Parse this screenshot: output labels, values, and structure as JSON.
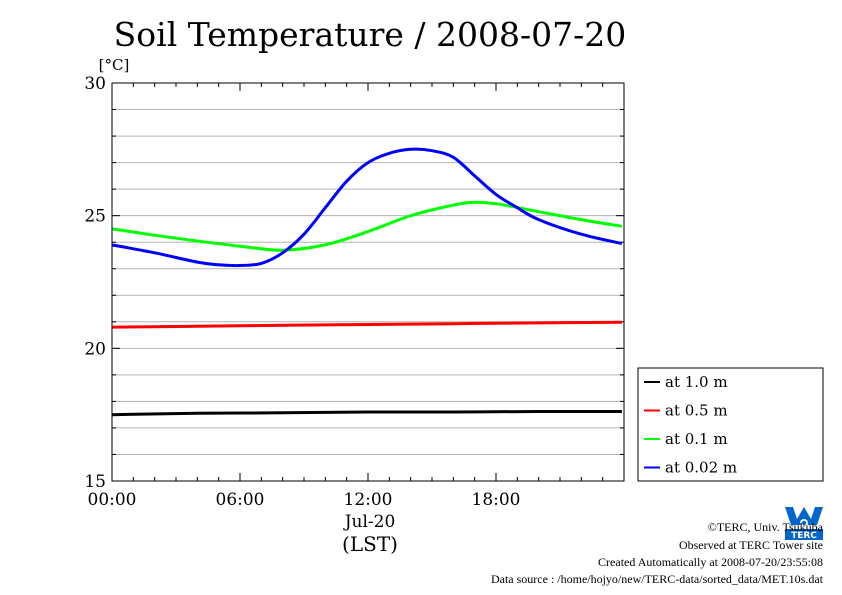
{
  "chart_data": {
    "type": "line",
    "title": "Soil Temperature / 2008-07-20",
    "ylabel": "[°C]",
    "xlabel": "(LST)",
    "date_label": "Jul-20",
    "ylim": [
      15,
      30
    ],
    "yticks": [
      "15",
      "20",
      "25",
      "30"
    ],
    "xlim_hours": [
      0,
      24
    ],
    "xticks": [
      "00:00",
      "06:00",
      "12:00",
      "18:00"
    ],
    "grid": true,
    "legend_position": "right",
    "series": [
      {
        "name": "at 1.0 m",
        "color": "#000000",
        "x": [
          0,
          4,
          8,
          12,
          16,
          20,
          23.9
        ],
        "y": [
          17.5,
          17.55,
          17.57,
          17.6,
          17.6,
          17.62,
          17.62
        ]
      },
      {
        "name": "at 0.5 m",
        "color": "#ff0000",
        "x": [
          0,
          4,
          8,
          12,
          16,
          20,
          23.9
        ],
        "y": [
          20.8,
          20.83,
          20.87,
          20.9,
          20.93,
          20.96,
          20.98
        ]
      },
      {
        "name": "at 0.1 m",
        "color": "#00ff00",
        "x": [
          0,
          3,
          6,
          8,
          10,
          12,
          14,
          16,
          17,
          18,
          20,
          22,
          23.9
        ],
        "y": [
          24.5,
          24.15,
          23.85,
          23.7,
          23.9,
          24.4,
          25.0,
          25.4,
          25.5,
          25.45,
          25.15,
          24.85,
          24.6
        ]
      },
      {
        "name": "at 0.02 m",
        "color": "#0000ff",
        "x": [
          0,
          2,
          4,
          5,
          6,
          7,
          8,
          9,
          10,
          11,
          12,
          13,
          14,
          15,
          16,
          17,
          18,
          19,
          20,
          22,
          23.9
        ],
        "y": [
          23.9,
          23.6,
          23.25,
          23.15,
          23.12,
          23.2,
          23.6,
          24.3,
          25.3,
          26.3,
          27.0,
          27.35,
          27.5,
          27.45,
          27.2,
          26.5,
          25.8,
          25.3,
          24.85,
          24.3,
          23.95
        ]
      }
    ]
  },
  "footer": {
    "copyright": "©TERC, Univ. Tsukuba",
    "observed": "Observed at TERC Tower site",
    "created": "Created Automatically at 2008-07-20/23:55:08",
    "source": "Data source : /home/hojyo/new/TERC-data/sorted_data/MET.10s.dat"
  },
  "logo": {
    "text": "TERC",
    "color": "#0066cc"
  }
}
